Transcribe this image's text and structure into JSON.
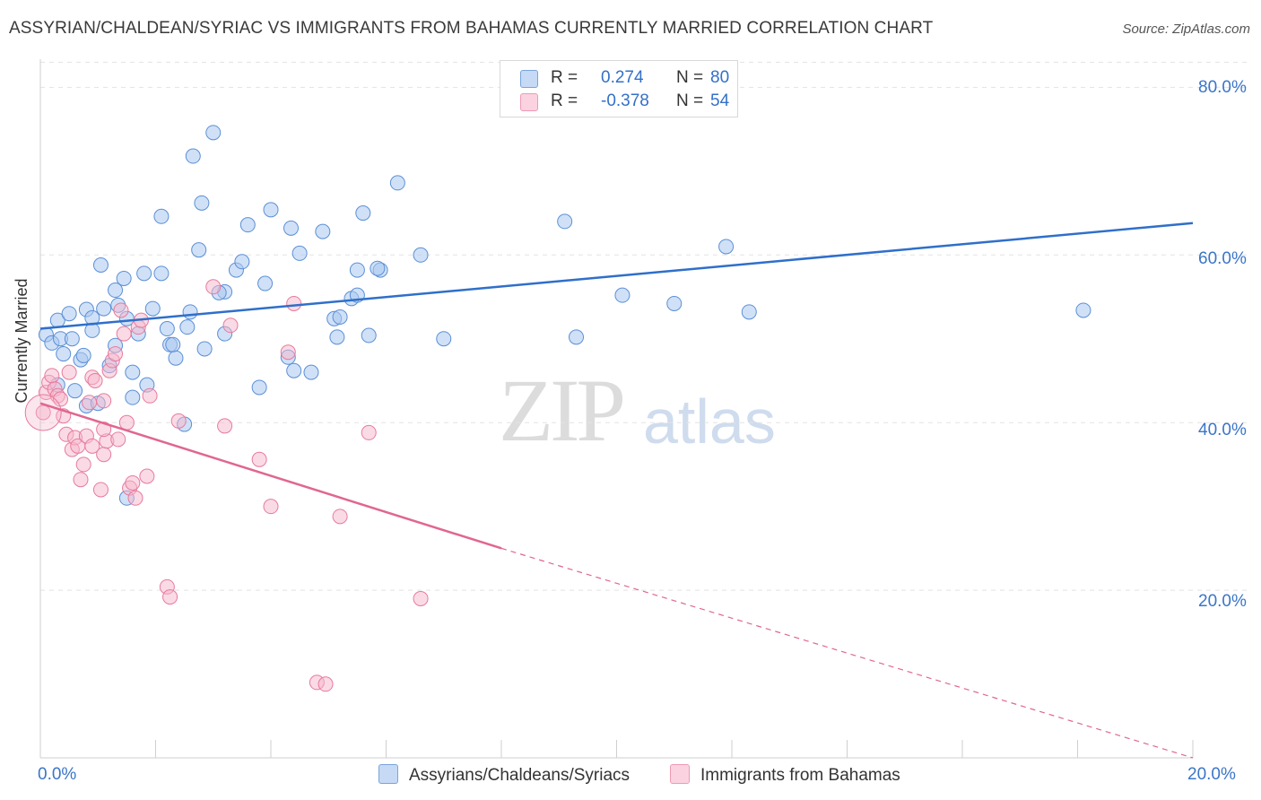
{
  "title": "ASSYRIAN/CHALDEAN/SYRIAC VS IMMIGRANTS FROM BAHAMAS CURRENTLY MARRIED CORRELATION CHART",
  "source": "Source: ZipAtlas.com",
  "watermark": {
    "zip": "ZIP",
    "atlas": "atlas"
  },
  "legend_top": {
    "rows": [
      {
        "r_label": "R =",
        "r_value": "0.274",
        "n_label": "N =",
        "n_value": "80"
      },
      {
        "r_label": "R =",
        "r_value": "-0.378",
        "n_label": "N =",
        "n_value": "54"
      }
    ]
  },
  "legend_bottom": {
    "series1": "Assyrians/Chaldeans/Syriacs",
    "series2": "Immigrants from Bahamas"
  },
  "colors": {
    "blue_fill": "#a9c8f0",
    "blue_stroke": "#5b8fd6",
    "blue_line": "#2f6fca",
    "pink_fill": "#f5b8cb",
    "pink_stroke": "#e87a9d",
    "pink_line": "#e0678f",
    "tick_text": "#3a75c8",
    "grid": "#e3e3e3"
  },
  "chart_data": {
    "type": "scatter",
    "title": "ASSYRIAN/CHALDEAN/SYRIAC VS IMMIGRANTS FROM BAHAMAS CURRENTLY MARRIED CORRELATION CHART",
    "xlabel": "",
    "ylabel": "Currently Married",
    "xlim": [
      0,
      20
    ],
    "ylim": [
      0,
      84
    ],
    "x_ticks": [
      "0.0%",
      "20.0%"
    ],
    "y_ticks": [
      {
        "value": 80,
        "label": "80.0%"
      },
      {
        "value": 60,
        "label": "60.0%"
      },
      {
        "value": 40,
        "label": "40.0%"
      },
      {
        "value": 20,
        "label": "20.0%"
      }
    ],
    "grid": "horizontal dashed",
    "legend": "bottom",
    "series": [
      {
        "name": "Assyrians/Chaldeans/Syriacs",
        "points": [
          [
            0.1,
            50.5
          ],
          [
            0.2,
            49.5
          ],
          [
            0.3,
            52.2
          ],
          [
            0.35,
            50.0
          ],
          [
            0.4,
            48.2
          ],
          [
            0.5,
            53.0
          ],
          [
            0.55,
            50.0
          ],
          [
            0.7,
            47.5
          ],
          [
            0.75,
            48.0
          ],
          [
            0.8,
            42.0
          ],
          [
            0.8,
            53.5
          ],
          [
            0.9,
            52.5
          ],
          [
            0.9,
            51.0
          ],
          [
            1.05,
            58.8
          ],
          [
            1.1,
            53.6
          ],
          [
            1.2,
            46.8
          ],
          [
            1.3,
            49.2
          ],
          [
            1.3,
            55.8
          ],
          [
            1.35,
            54.0
          ],
          [
            1.45,
            57.2
          ],
          [
            1.5,
            52.4
          ],
          [
            1.5,
            31.0
          ],
          [
            1.6,
            46.0
          ],
          [
            1.7,
            50.6
          ],
          [
            1.8,
            57.8
          ],
          [
            1.85,
            44.5
          ],
          [
            1.95,
            53.6
          ],
          [
            2.1,
            64.6
          ],
          [
            2.1,
            57.8
          ],
          [
            2.2,
            51.2
          ],
          [
            2.25,
            49.3
          ],
          [
            2.35,
            47.7
          ],
          [
            2.5,
            39.8
          ],
          [
            2.55,
            51.4
          ],
          [
            2.6,
            53.2
          ],
          [
            2.65,
            71.8
          ],
          [
            2.75,
            60.6
          ],
          [
            2.8,
            66.2
          ],
          [
            2.85,
            48.8
          ],
          [
            3.0,
            74.6
          ],
          [
            3.2,
            50.6
          ],
          [
            3.2,
            55.6
          ],
          [
            3.4,
            58.2
          ],
          [
            3.5,
            59.2
          ],
          [
            3.6,
            63.6
          ],
          [
            3.8,
            44.2
          ],
          [
            3.9,
            56.6
          ],
          [
            4.0,
            65.4
          ],
          [
            4.3,
            47.8
          ],
          [
            4.35,
            63.2
          ],
          [
            4.4,
            46.2
          ],
          [
            4.5,
            60.2
          ],
          [
            4.7,
            46.0
          ],
          [
            4.9,
            62.8
          ],
          [
            5.1,
            52.4
          ],
          [
            5.15,
            50.2
          ],
          [
            5.2,
            52.6
          ],
          [
            5.4,
            54.8
          ],
          [
            5.5,
            55.2
          ],
          [
            5.5,
            58.2
          ],
          [
            5.6,
            65.0
          ],
          [
            5.7,
            50.4
          ],
          [
            5.9,
            58.2
          ],
          [
            6.2,
            68.6
          ],
          [
            6.6,
            60.0
          ],
          [
            7.0,
            50.0
          ],
          [
            9.1,
            64.0
          ],
          [
            9.3,
            50.2
          ],
          [
            10.1,
            55.2
          ],
          [
            11.0,
            54.2
          ],
          [
            11.9,
            61.0
          ],
          [
            12.3,
            53.2
          ],
          [
            18.1,
            53.4
          ],
          [
            1.6,
            43.0
          ],
          [
            0.6,
            43.8
          ],
          [
            0.3,
            44.5
          ],
          [
            5.85,
            58.4
          ],
          [
            3.1,
            55.5
          ],
          [
            2.3,
            49.3
          ],
          [
            1.0,
            42.3
          ]
        ],
        "trend": {
          "x0": 0,
          "y0": 51.2,
          "x1": 20,
          "y1": 63.8
        }
      },
      {
        "name": "Immigrants from Bahamas",
        "points": [
          [
            0.05,
            41.2
          ],
          [
            0.1,
            43.6
          ],
          [
            0.15,
            44.8
          ],
          [
            0.2,
            45.6
          ],
          [
            0.25,
            44.0
          ],
          [
            0.3,
            43.2
          ],
          [
            0.35,
            42.8
          ],
          [
            0.45,
            38.6
          ],
          [
            0.5,
            46.0
          ],
          [
            0.55,
            36.8
          ],
          [
            0.6,
            38.2
          ],
          [
            0.65,
            37.2
          ],
          [
            0.7,
            33.2
          ],
          [
            0.75,
            35.0
          ],
          [
            0.8,
            38.4
          ],
          [
            0.85,
            42.4
          ],
          [
            0.9,
            37.2
          ],
          [
            0.9,
            45.4
          ],
          [
            0.95,
            45.0
          ],
          [
            1.05,
            32.0
          ],
          [
            1.1,
            36.2
          ],
          [
            1.1,
            42.6
          ],
          [
            1.15,
            37.8
          ],
          [
            1.2,
            46.2
          ],
          [
            1.25,
            47.4
          ],
          [
            1.3,
            48.2
          ],
          [
            1.35,
            38.0
          ],
          [
            1.4,
            53.4
          ],
          [
            1.45,
            50.6
          ],
          [
            1.5,
            40.0
          ],
          [
            1.55,
            32.2
          ],
          [
            1.6,
            32.8
          ],
          [
            1.65,
            31.0
          ],
          [
            1.7,
            51.4
          ],
          [
            1.75,
            52.2
          ],
          [
            1.85,
            33.6
          ],
          [
            1.9,
            43.2
          ],
          [
            2.2,
            20.4
          ],
          [
            2.25,
            19.2
          ],
          [
            2.4,
            40.2
          ],
          [
            3.0,
            56.2
          ],
          [
            3.2,
            39.6
          ],
          [
            3.3,
            51.6
          ],
          [
            3.8,
            35.6
          ],
          [
            4.0,
            30.0
          ],
          [
            4.3,
            48.4
          ],
          [
            4.4,
            54.2
          ],
          [
            4.8,
            9.0
          ],
          [
            4.95,
            8.8
          ],
          [
            5.2,
            28.8
          ],
          [
            5.7,
            38.8
          ],
          [
            6.6,
            19.0
          ],
          [
            1.1,
            39.2
          ],
          [
            0.4,
            40.8
          ]
        ],
        "trend": {
          "x0": 0,
          "y0": 42.3,
          "x1": 8,
          "y1": 25.0,
          "dash_to_x": 20,
          "dash_to_y": 0
        }
      }
    ]
  }
}
